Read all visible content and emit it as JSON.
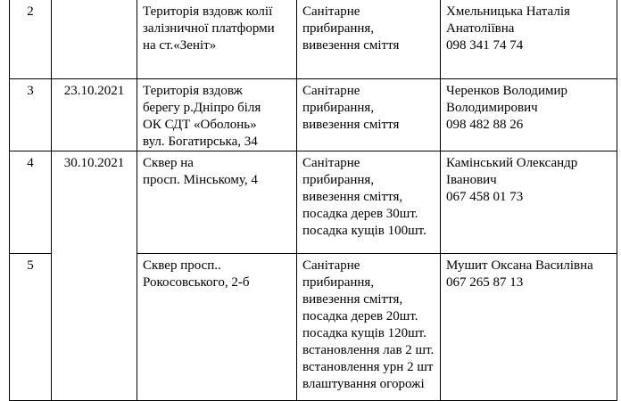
{
  "rows": [
    {
      "num": "2",
      "date": "",
      "location": [
        "Територія вздовж колії",
        "залізничної платформи",
        "на ст.«Зеніт»"
      ],
      "work": [
        "Санітарне",
        "прибирання,",
        "вивезення сміття"
      ],
      "contact": [
        "Хмельницька Наталія",
        "Анатоліївна",
        "098 341 74 74"
      ]
    },
    {
      "num": "3",
      "date": "23.10.2021",
      "location": [
        "Територія вздовж",
        "берегу р.Дніпро біля",
        "ОК СДТ «Оболонь»",
        "вул. Богатирська, 34"
      ],
      "work": [
        "Санітарне",
        "прибирання,",
        "вивезення сміття"
      ],
      "contact": [
        "Черенков Володимир",
        "Володимирович",
        "098 482 88 26"
      ]
    },
    {
      "num": "4",
      "date": "30.10.2021",
      "location": [
        "Сквер на",
        "просп. Мінському, 4"
      ],
      "work": [
        "Санітарне",
        "прибирання,",
        "вивезення сміття,",
        "посадка дерев 30шт.",
        "посадка кущів 100шт."
      ],
      "contact": [
        "Камінський Олександр",
        "Іванович",
        "067 458 01 73"
      ]
    },
    {
      "num": "5",
      "location": [
        "Сквер просп..",
        "Рокосовського, 2-б"
      ],
      "work": [
        "Санітарне",
        "прибирання,",
        "вивезення сміття,",
        "посадка дерев 20шт.",
        "посадка кущів 120шт.",
        "встановлення лав 2 шт.",
        "встановлення урн 2 шт",
        "влаштування огорожі"
      ],
      "contact": [
        "Мушит Оксана Василівна",
        "067 265 87 13"
      ]
    }
  ]
}
